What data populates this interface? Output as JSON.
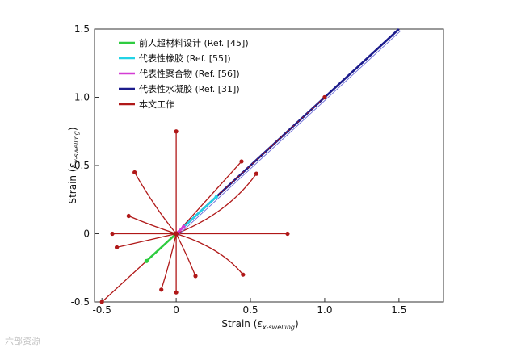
{
  "chart_data": {
    "type": "line",
    "title": "",
    "xlabel": {
      "main": "Strain (",
      "greek": "ε",
      "sub": "x-swelling",
      "close": ")"
    },
    "ylabel": {
      "main": "Strain (",
      "greek": "ε",
      "sub": "y-swelling",
      "close": ")"
    },
    "xlim": [
      -0.55,
      1.8
    ],
    "ylim": [
      -0.5,
      1.5
    ],
    "xticks": [
      -0.5,
      0,
      0.5,
      1.0,
      1.5
    ],
    "xtick_labels": [
      "-0.5",
      "0",
      "0.5",
      "1.0",
      "1.5"
    ],
    "yticks": [
      -0.5,
      0,
      0.5,
      1.0,
      1.5
    ],
    "ytick_labels": [
      "-0.5",
      "0",
      "0.5",
      "1.0",
      "1.5"
    ],
    "legend_position": "top-left",
    "legend": [
      {
        "label": "前人超材料设计 (Ref. [45])",
        "color": "#2ecc40"
      },
      {
        "label": "代表性橡胶 (Ref. [55])",
        "color": "#22d3e6"
      },
      {
        "label": "代表性聚合物 (Ref. [56])",
        "color": "#d43cd4"
      },
      {
        "label": "代表性水凝胶 (Ref. [31])",
        "color": "#1c1c8c"
      },
      {
        "label": "本文工作",
        "color": "#b01818"
      }
    ],
    "series": [
      {
        "name": "前人超材料设计 (Ref. [45])",
        "x": [
          -0.2,
          0
        ],
        "y": [
          -0.2,
          0
        ],
        "color": "#2ecc40"
      },
      {
        "name": "代表性橡胶 (Ref. [55])",
        "x": [
          0,
          0.27
        ],
        "y": [
          0,
          0.27
        ],
        "color": "#22d3e6"
      },
      {
        "name": "代表性聚合物 (Ref. [56])",
        "x": [
          0,
          0.05
        ],
        "y": [
          0,
          0.05
        ],
        "color": "#d43cd4"
      },
      {
        "name": "代表性水凝胶 (Ref. [31])",
        "x": [
          0,
          1.5
        ],
        "y": [
          0,
          1.5
        ],
        "color": "#1c1c8c"
      },
      {
        "name": "本文工作",
        "color": "#b01818",
        "curves": [
          {
            "x": [
              0,
              0.5,
              1.0
            ],
            "y": [
              0,
              0.5,
              1.0
            ]
          },
          {
            "x": [
              0,
              0,
              0
            ],
            "y": [
              0,
              0.37,
              0.75
            ]
          },
          {
            "x": [
              0,
              -0.15,
              -0.28
            ],
            "y": [
              0,
              0.2,
              0.45
            ]
          },
          {
            "x": [
              0,
              -0.17,
              -0.32
            ],
            "y": [
              0,
              0.06,
              0.13
            ]
          },
          {
            "x": [
              0,
              -0.2,
              -0.43
            ],
            "y": [
              0,
              0,
              0
            ]
          },
          {
            "x": [
              0,
              -0.2,
              -0.4
            ],
            "y": [
              0,
              -0.05,
              -0.1
            ]
          },
          {
            "x": [
              0,
              -0.25,
              -0.5
            ],
            "y": [
              0,
              -0.25,
              -0.5
            ]
          },
          {
            "x": [
              0,
              -0.04,
              -0.1
            ],
            "y": [
              0,
              -0.2,
              -0.41
            ]
          },
          {
            "x": [
              0,
              0,
              0
            ],
            "y": [
              0,
              -0.2,
              -0.43
            ]
          },
          {
            "x": [
              0,
              0.07,
              0.13
            ],
            "y": [
              0,
              -0.15,
              -0.31
            ]
          },
          {
            "x": [
              0,
              0.3,
              0.45
            ],
            "y": [
              0,
              -0.1,
              -0.3
            ]
          },
          {
            "x": [
              0,
              0.4,
              0.75
            ],
            "y": [
              0,
              0,
              0
            ]
          },
          {
            "x": [
              0,
              0.35,
              0.54
            ],
            "y": [
              0,
              0.15,
              0.44
            ]
          },
          {
            "x": [
              0,
              0.25,
              0.44
            ],
            "y": [
              0,
              0.3,
              0.53
            ]
          }
        ]
      }
    ]
  },
  "watermark": "六部资源"
}
